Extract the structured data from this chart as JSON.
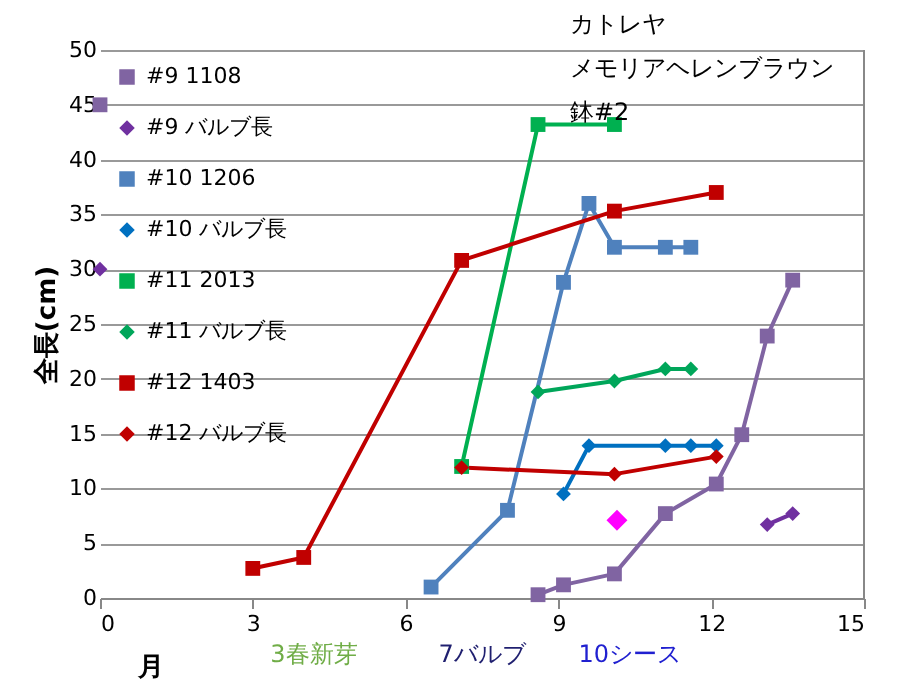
{
  "chart_data": {
    "type": "line",
    "title": "カトレヤ",
    "subtitle": "メモリアヘレンブラウン",
    "xlabel": "月",
    "ylabel": "全長(cm)",
    "xlim": [
      0,
      15
    ],
    "xticks": [
      0,
      3,
      6,
      9,
      12,
      15
    ],
    "ylim": [
      0,
      50
    ],
    "yticks": [
      0,
      5,
      10,
      15,
      20,
      25,
      30,
      35,
      40,
      45,
      50
    ],
    "grid": "y",
    "legend": "top left",
    "annotations": [
      "3春新芽",
      "7バルブ",
      "10シース",
      "鉢#2"
    ],
    "series": [
      {
        "name": "#9 1108",
        "color": "#8064a2",
        "marker": "square",
        "x": [
          0,
          4,
          8.6,
          9.1,
          10.1,
          11.1,
          12.1,
          12.6,
          13.1,
          13.6
        ],
        "values": [
          45,
          null,
          0.3,
          1.2,
          2.2,
          7.7,
          10.4,
          14.9,
          23.9,
          29
        ]
      },
      {
        "name": "#9 バルブ長",
        "color": "#7030a0",
        "marker": "diamond",
        "x": [
          0,
          4,
          13.1,
          13.6
        ],
        "values": [
          30,
          null,
          6.7,
          7.7
        ]
      },
      {
        "name": "#10 1206",
        "color": "#4f81bd",
        "marker": "square",
        "x": [
          6.5,
          8,
          9.1,
          9.6,
          10.1,
          11.1,
          11.6
        ],
        "values": [
          1,
          8,
          28.8,
          36,
          32,
          32,
          32
        ]
      },
      {
        "name": "#10 バルブ長",
        "color": "#0070c0",
        "marker": "diamond",
        "x": [
          9.1,
          9.6,
          11.1,
          11.6,
          12.1
        ],
        "values": [
          9.5,
          13.9,
          13.9,
          13.9,
          13.9
        ]
      },
      {
        "name": "#11 2013",
        "color": "#00b050",
        "marker": "square",
        "x": [
          7.1,
          8.6,
          10.1
        ],
        "values": [
          12,
          43.2,
          43.2
        ]
      },
      {
        "name": "#11 バルブ長",
        "color": "#00a65a",
        "marker": "diamond",
        "x": [
          8.6,
          10.1,
          11.1,
          11.6
        ],
        "values": [
          18.8,
          19.8,
          20.9,
          20.9
        ]
      },
      {
        "name": "#12 1403",
        "color": "#c00000",
        "marker": "square",
        "x": [
          3,
          4,
          7.1,
          10.1,
          12.1
        ],
        "values": [
          2.7,
          3.7,
          30.8,
          35.3,
          37
        ]
      },
      {
        "name": "#12 バルブ長",
        "color": "#c00000",
        "marker": "diamond",
        "x": [
          7.1,
          10.1,
          12.1
        ],
        "values": [
          11.9,
          11.3,
          12.9
        ]
      },
      {
        "type": "scatter",
        "color": "#ff00ff",
        "marker": "diamond",
        "x": [
          10.15
        ],
        "values": [
          7.1
        ]
      }
    ]
  }
}
